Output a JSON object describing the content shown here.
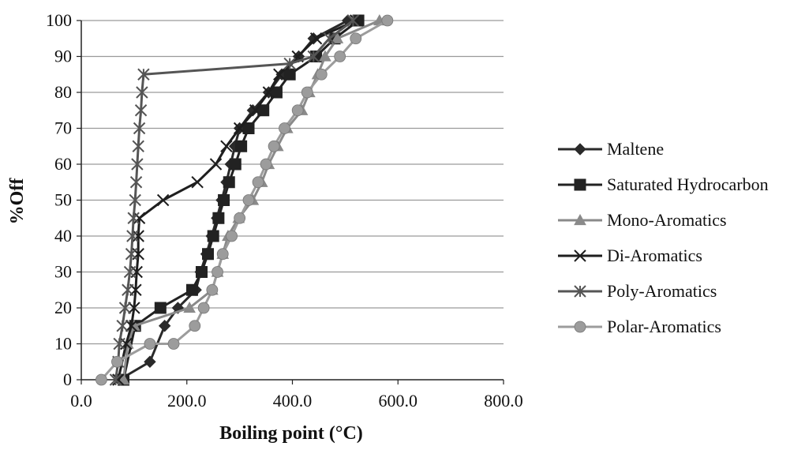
{
  "chart_data": {
    "type": "line",
    "xlabel": "Boiling point (°C)",
    "ylabel": "%Off",
    "xlim": [
      0,
      800
    ],
    "ylim": [
      0,
      100
    ],
    "x_ticks": [
      "0.0",
      "200.0",
      "400.0",
      "600.0",
      "800.0"
    ],
    "y_ticks": [
      "0",
      "10",
      "20",
      "30",
      "40",
      "50",
      "60",
      "70",
      "80",
      "90",
      "100"
    ],
    "grid": "horizontal",
    "legend_position": "right",
    "series": [
      {
        "name": "Maltene",
        "color": "#2a2a2a",
        "marker": "diamond",
        "points": [
          [
            72,
            0
          ],
          [
            130,
            5
          ],
          [
            158,
            15
          ],
          [
            183,
            20
          ],
          [
            217,
            25
          ],
          [
            226,
            30
          ],
          [
            237,
            35
          ],
          [
            247,
            40
          ],
          [
            257,
            45
          ],
          [
            266,
            50
          ],
          [
            275,
            55
          ],
          [
            283,
            60
          ],
          [
            291,
            65
          ],
          [
            300,
            70
          ],
          [
            325,
            75
          ],
          [
            355,
            80
          ],
          [
            380,
            85
          ],
          [
            412,
            90
          ],
          [
            440,
            95
          ],
          [
            505,
            100
          ]
        ]
      },
      {
        "name": "Saturated Hydrocarbon",
        "color": "#222222",
        "marker": "square",
        "points": [
          [
            80,
            0
          ],
          [
            102,
            15
          ],
          [
            150,
            20
          ],
          [
            210,
            25
          ],
          [
            228,
            30
          ],
          [
            240,
            35
          ],
          [
            250,
            40
          ],
          [
            260,
            45
          ],
          [
            270,
            50
          ],
          [
            280,
            55
          ],
          [
            292,
            60
          ],
          [
            303,
            65
          ],
          [
            317,
            70
          ],
          [
            345,
            75
          ],
          [
            370,
            80
          ],
          [
            395,
            85
          ],
          [
            445,
            90
          ],
          [
            480,
            95
          ],
          [
            525,
            100
          ]
        ]
      },
      {
        "name": "Mono-Aromatics",
        "color": "#8a8a8a",
        "marker": "triangle",
        "points": [
          [
            80,
            0
          ],
          [
            88,
            10
          ],
          [
            100,
            15
          ],
          [
            205,
            20
          ],
          [
            248,
            25
          ],
          [
            258,
            30
          ],
          [
            268,
            35
          ],
          [
            278,
            40
          ],
          [
            298,
            45
          ],
          [
            325,
            50
          ],
          [
            342,
            55
          ],
          [
            355,
            60
          ],
          [
            372,
            65
          ],
          [
            390,
            70
          ],
          [
            418,
            75
          ],
          [
            432,
            80
          ],
          [
            448,
            85
          ],
          [
            462,
            90
          ],
          [
            485,
            95
          ],
          [
            565,
            100
          ]
        ]
      },
      {
        "name": "Di-Aromatics",
        "color": "#1e1e1e",
        "marker": "x",
        "points": [
          [
            70,
            0
          ],
          [
            85,
            10
          ],
          [
            95,
            15
          ],
          [
            100,
            20
          ],
          [
            103,
            25
          ],
          [
            105,
            30
          ],
          [
            108,
            35
          ],
          [
            108,
            40
          ],
          [
            110,
            45
          ],
          [
            155,
            50
          ],
          [
            220,
            55
          ],
          [
            255,
            60
          ],
          [
            275,
            65
          ],
          [
            300,
            70
          ],
          [
            330,
            75
          ],
          [
            355,
            80
          ],
          [
            375,
            85
          ],
          [
            410,
            90
          ],
          [
            445,
            95
          ],
          [
            520,
            100
          ]
        ]
      },
      {
        "name": "Poly-Aromatics",
        "color": "#555555",
        "marker": "star",
        "points": [
          [
            65,
            0
          ],
          [
            70,
            5
          ],
          [
            72,
            10
          ],
          [
            78,
            15
          ],
          [
            83,
            20
          ],
          [
            88,
            25
          ],
          [
            92,
            30
          ],
          [
            95,
            35
          ],
          [
            97,
            40
          ],
          [
            99,
            45
          ],
          [
            102,
            50
          ],
          [
            104,
            55
          ],
          [
            106,
            60
          ],
          [
            108,
            65
          ],
          [
            110,
            70
          ],
          [
            113,
            75
          ],
          [
            115,
            80
          ],
          [
            118,
            85
          ],
          [
            395,
            88
          ],
          [
            440,
            90
          ],
          [
            470,
            95
          ],
          [
            515,
            100
          ]
        ]
      },
      {
        "name": "Polar-Aromatics",
        "color": "#9c9c9c",
        "marker": "circle",
        "points": [
          [
            38,
            0
          ],
          [
            68,
            5
          ],
          [
            130,
            10
          ],
          [
            175,
            10
          ],
          [
            215,
            15
          ],
          [
            232,
            20
          ],
          [
            248,
            25
          ],
          [
            258,
            30
          ],
          [
            268,
            35
          ],
          [
            285,
            40
          ],
          [
            300,
            45
          ],
          [
            317,
            50
          ],
          [
            335,
            55
          ],
          [
            350,
            60
          ],
          [
            365,
            65
          ],
          [
            385,
            70
          ],
          [
            410,
            75
          ],
          [
            428,
            80
          ],
          [
            455,
            85
          ],
          [
            490,
            90
          ],
          [
            520,
            95
          ],
          [
            580,
            100
          ]
        ]
      }
    ]
  }
}
